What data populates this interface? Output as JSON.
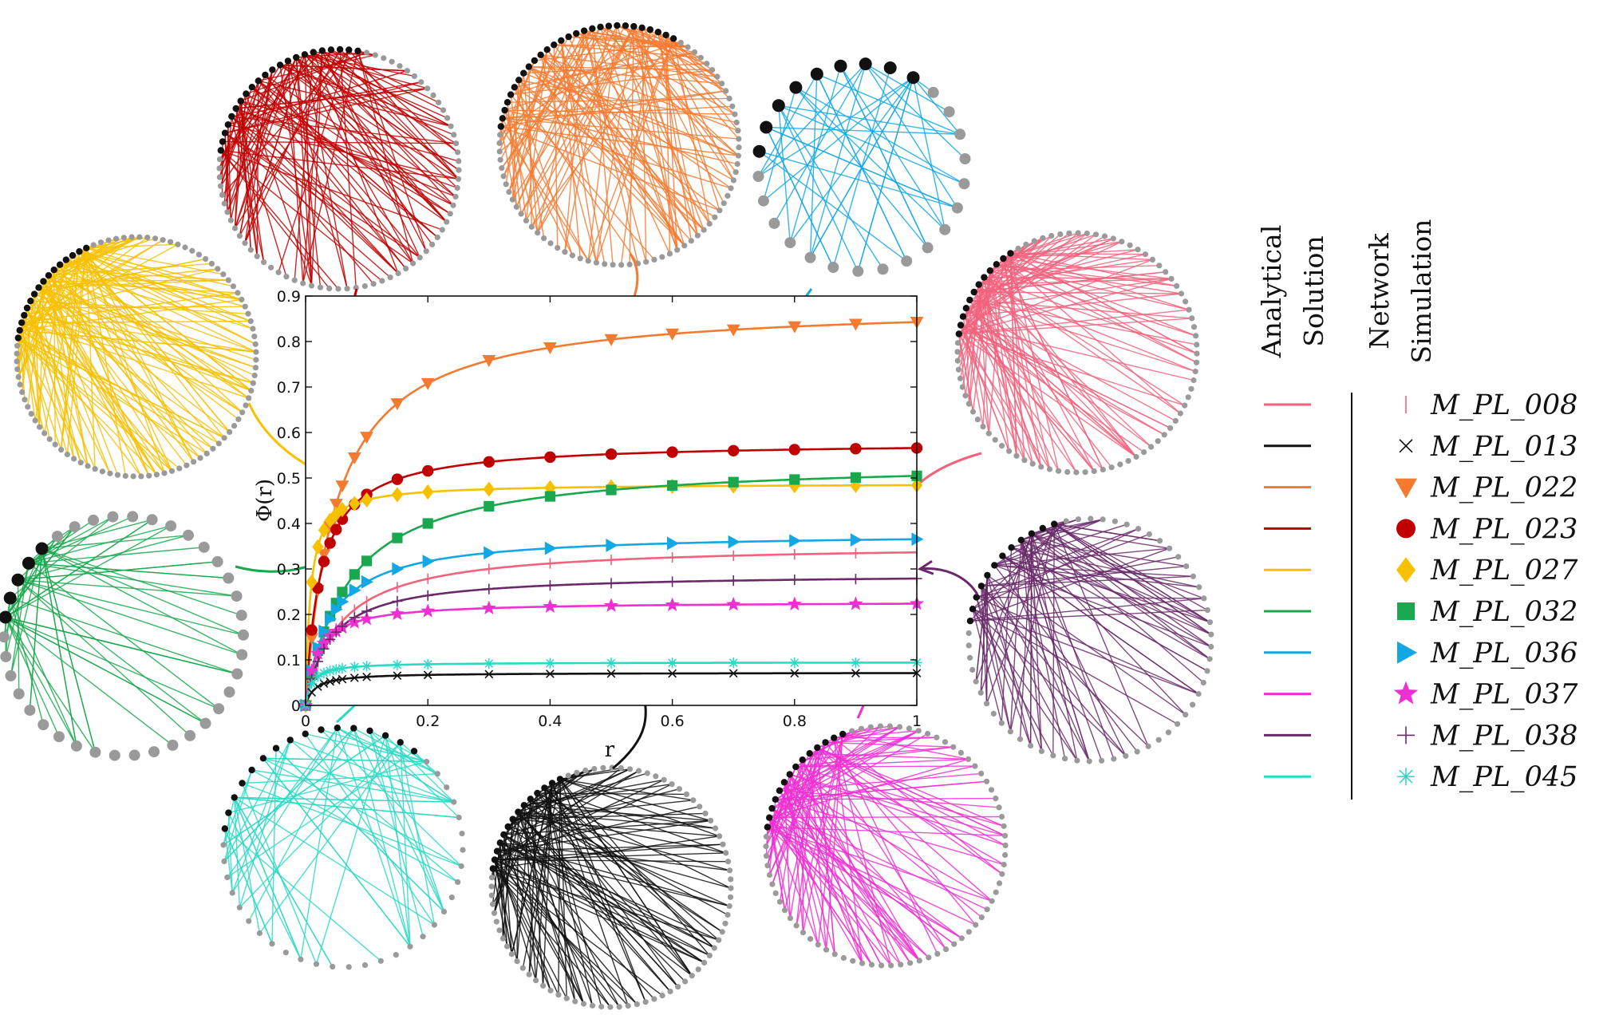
{
  "chart_data": {
    "type": "line",
    "title": "",
    "xlabel": "r",
    "ylabel": "Φ(r)",
    "xlim": [
      0,
      1
    ],
    "ylim": [
      0,
      0.9
    ],
    "x_ticks": [
      0,
      0.2,
      0.4,
      0.6,
      0.8,
      1
    ],
    "x_tick_labels": [
      "0",
      "0.2",
      "0.4",
      "0.6",
      "0.8",
      "1"
    ],
    "y_ticks": [
      0,
      0.1,
      0.2,
      0.3,
      0.4,
      0.5,
      0.6,
      0.7,
      0.8,
      0.9
    ],
    "y_tick_labels": [
      "0",
      "0.1",
      "0.2",
      "0.3",
      "0.4",
      "0.5",
      "0.6",
      "0.7",
      "0.8",
      "0.9"
    ],
    "legend": {
      "analytical_title": [
        "Analytical",
        "Solution"
      ],
      "simulation_title": [
        "Network",
        "Simulation"
      ],
      "placement": "right"
    },
    "x_sim": [
      0,
      0.01,
      0.02,
      0.03,
      0.04,
      0.05,
      0.06,
      0.08,
      0.1,
      0.15,
      0.2,
      0.3,
      0.4,
      0.5,
      0.6,
      0.7,
      0.8,
      0.9,
      1.0
    ],
    "series": [
      {
        "name": "M_PL_008",
        "color": "#f2627c",
        "marker": "tick",
        "asymptote": 0.355,
        "k": 0.055
      },
      {
        "name": "M_PL_013",
        "color": "#111111",
        "marker": "x",
        "asymptote": 0.072,
        "k": 0.015
      },
      {
        "name": "M_PL_022",
        "color": "#f47a30",
        "marker": "triangle-down",
        "asymptote": 0.885,
        "k": 0.05
      },
      {
        "name": "M_PL_023",
        "color": "#c00000",
        "marker": "circle",
        "asymptote": 0.58,
        "k": 0.025
      },
      {
        "name": "M_PL_027",
        "color": "#f7c000",
        "marker": "diamond",
        "asymptote": 0.488,
        "k": 0.008
      },
      {
        "name": "M_PL_032",
        "color": "#1aa84e",
        "marker": "square",
        "asymptote": 0.54,
        "k": 0.07
      },
      {
        "name": "M_PL_036",
        "color": "#12a8e6",
        "marker": "triangle-right",
        "asymptote": 0.38,
        "k": 0.04
      },
      {
        "name": "M_PL_037",
        "color": "#ee2fd2",
        "marker": "star",
        "asymptote": 0.228,
        "k": 0.02
      },
      {
        "name": "M_PL_038",
        "color": "#6a2a6a",
        "marker": "plus",
        "asymptote": 0.29,
        "k": 0.04
      },
      {
        "name": "M_PL_045",
        "color": "#2ad9c4",
        "marker": "asterisk",
        "asymptote": 0.095,
        "k": 0.01
      }
    ],
    "network_insets": [
      {
        "series": "M_PL_023",
        "color": "#c00000",
        "nodes": 84,
        "hubs": 22
      },
      {
        "series": "M_PL_022",
        "color": "#f47a30",
        "nodes": 90,
        "hubs": 28
      },
      {
        "series": "M_PL_036",
        "color": "#12a8e6",
        "nodes": 26,
        "hubs": 9
      },
      {
        "series": "M_PL_008",
        "color": "#f2627c",
        "nodes": 84,
        "hubs": 12
      },
      {
        "series": "M_PL_027",
        "color": "#f7c000",
        "nodes": 96,
        "hubs": 16
      },
      {
        "series": "M_PL_032",
        "color": "#1aa84e",
        "nodes": 38,
        "hubs": 5
      },
      {
        "series": "M_PL_038",
        "color": "#6a2a6a",
        "nodes": 62,
        "hubs": 12
      },
      {
        "series": "M_PL_045",
        "color": "#2ad9c4",
        "nodes": 46,
        "hubs": 16
      },
      {
        "series": "M_PL_013",
        "color": "#111111",
        "nodes": 84,
        "hubs": 14
      },
      {
        "series": "M_PL_037",
        "color": "#ee2fd2",
        "nodes": 78,
        "hubs": 14
      }
    ]
  }
}
